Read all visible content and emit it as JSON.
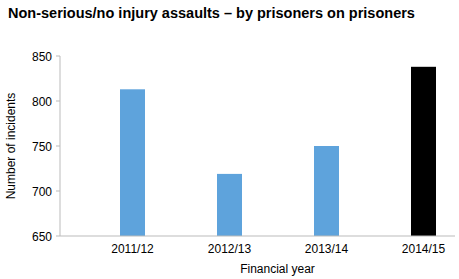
{
  "chart_data": {
    "type": "bar",
    "title": "Non-serious/no injury assaults – by prisoners on prisoners",
    "x_label": "Financial year",
    "y_label": "Number of incidents",
    "categories": [
      "2011/12",
      "2012/13",
      "2013/14",
      "2014/15"
    ],
    "values": [
      813,
      719,
      750,
      838
    ],
    "colors": [
      "#5ea3dc",
      "#5ea3dc",
      "#5ea3dc",
      "#000000"
    ],
    "ylim": [
      650,
      850
    ],
    "yticks": [
      650,
      700,
      750,
      800,
      850
    ],
    "grid": false
  }
}
